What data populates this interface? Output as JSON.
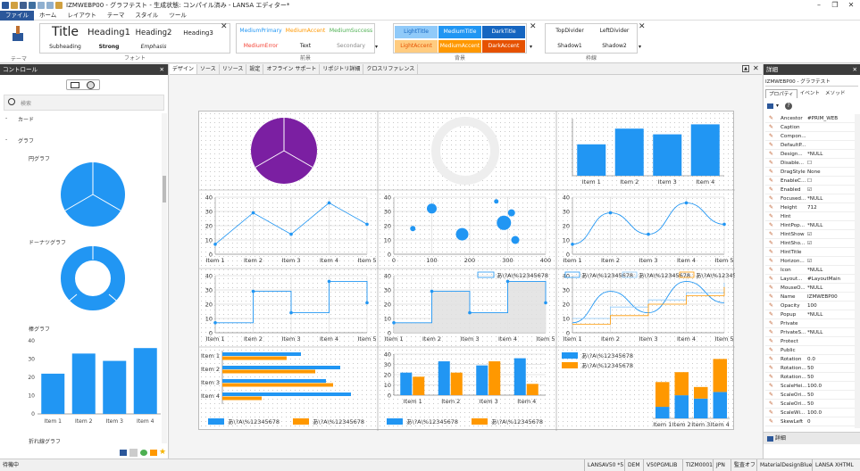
{
  "window": {
    "title": "IZMWEBP00 - グラフテスト - 生成状態: コンパイル済み - LANSA エディター*",
    "buttons": [
      "–",
      "❐",
      "✕"
    ]
  },
  "menu": [
    "ファイル",
    "ホーム",
    "レイアウト",
    "テーマ",
    "スタイル",
    "ツール"
  ],
  "ribbon": {
    "theme_label": "テーマ",
    "font_label": "フォント",
    "fonts": {
      "title": "Title",
      "heading1": "Heading1",
      "heading2": "Heading2",
      "heading3": "Heading3",
      "subheading": "Subheading",
      "strong": "Strong",
      "emphasis": "Emphasis"
    },
    "fg_label": "前景",
    "fg": {
      "medium_primary": "MediumPrimary",
      "medium_accent": "MediumAccent",
      "medium_success": "MediumSuccess",
      "medium_error": "MediumError",
      "text": "Text",
      "secondary": "Secondary"
    },
    "bg_label": "背景",
    "bg": {
      "light_title": "LightTitle",
      "medium_title": "MediumTitle",
      "dark_title": "DarkTitle",
      "light_accent": "LightAccent",
      "medium_accent": "MediumAccent",
      "dark_accent": "DarkAccent"
    },
    "border_label": "枠線",
    "border": {
      "top_divider": "TopDivider",
      "left_divider": "LeftDivider",
      "shadow1": "Shadow1",
      "shadow2": "Shadow2"
    }
  },
  "left_panel": {
    "header": "コントロール",
    "search_placeholder": "検索",
    "card_label": "カード",
    "graph_label": "グラフ",
    "pie_label": "円グラフ",
    "donut_label": "ドーナツグラフ",
    "bar_label": "棒グラフ",
    "line_label": "折れ線グラフ",
    "mini_bar": {
      "categories": [
        "Item 1",
        "Item 2",
        "Item 3",
        "Item 4"
      ],
      "values": [
        22,
        33,
        29,
        36
      ],
      "y_ticks": [
        "40",
        "30",
        "20",
        "10",
        "0"
      ]
    }
  },
  "tabs": [
    "デザイン",
    "ソース",
    "リソース",
    "設定",
    "オフライン サポート",
    "リポジトリ詳細",
    "クロスリファレンス"
  ],
  "chart_data": [
    {
      "type": "pie",
      "values": [
        1,
        1,
        1
      ],
      "color": "#7b1fa2"
    },
    {
      "type": "donut",
      "values": [
        1
      ],
      "color": "#eeeeee"
    },
    {
      "type": "bar",
      "categories": [
        "Item 1",
        "Item 2",
        "Item 3",
        "Item 4"
      ],
      "values": [
        22,
        33,
        29,
        36
      ],
      "color": "#2196f3"
    },
    {
      "type": "line",
      "categories": [
        "Item 1",
        "Item 2",
        "Item 3",
        "Item 4",
        "Item 5"
      ],
      "values": [
        7,
        29,
        14,
        36,
        21
      ],
      "ylim": [
        0,
        40
      ],
      "y_ticks": [
        0,
        10,
        20,
        30,
        40
      ]
    },
    {
      "type": "scatter",
      "x_ticks": [
        0,
        100,
        200,
        300,
        400
      ],
      "y_ticks": [
        0,
        10,
        20,
        30,
        40
      ],
      "points": [
        [
          100,
          32
        ],
        [
          270,
          37
        ],
        [
          50,
          18
        ],
        [
          290,
          22
        ],
        [
          180,
          14
        ],
        [
          320,
          10
        ],
        [
          310,
          29
        ]
      ]
    },
    {
      "type": "spline",
      "categories": [
        "Item 1",
        "Item 2",
        "Item 3",
        "Item 4",
        "Item 5"
      ],
      "values": [
        7,
        29,
        14,
        36,
        21
      ],
      "ylim": [
        0,
        40
      ],
      "y_ticks": [
        0,
        10,
        20,
        30,
        40
      ]
    },
    {
      "type": "step",
      "categories": [
        "Item 1",
        "Item 2",
        "Item 3",
        "Item 4",
        "Item 5"
      ],
      "values": [
        7,
        29,
        14,
        36,
        21
      ],
      "ylim": [
        0,
        40
      ],
      "y_ticks": [
        0,
        10,
        20,
        30,
        40
      ]
    },
    {
      "type": "step-area",
      "categories": [
        "Item 1",
        "Item 2",
        "Item 3",
        "Item 4",
        "Item 5"
      ],
      "values": [
        7,
        29,
        14,
        36,
        21
      ],
      "ylim": [
        0,
        40
      ],
      "y_ticks": [
        0,
        10,
        20,
        30,
        40
      ],
      "legend": "あ\\?A\\%12345678"
    },
    {
      "type": "multi-line",
      "categories": [
        "Item 1",
        "Item 2",
        "Item 3",
        "Item 4",
        "Item 5"
      ],
      "series": [
        {
          "name": "あ\\?A\\%12345678",
          "values": [
            7,
            29,
            14,
            36,
            21
          ]
        },
        {
          "name": "あ\\?A\\%12345678",
          "values": [
            10,
            18,
            23,
            28,
            35
          ]
        },
        {
          "name": "あ\\?A\\%12345678",
          "values": [
            6,
            12,
            20,
            26,
            32
          ]
        }
      ],
      "ylim": [
        0,
        40
      ],
      "y_ticks": [
        0,
        10,
        20,
        30,
        40
      ]
    },
    {
      "type": "hbar",
      "categories": [
        "Item 1",
        "Item 2",
        "Item 3",
        "Item 4"
      ],
      "series": [
        {
          "name": "あ\\?A\\%12345678",
          "values": [
            22,
            33,
            29,
            36
          ]
        },
        {
          "name": "あ\\?A\\%12345678",
          "values": [
            18,
            26,
            31,
            11
          ]
        }
      ]
    },
    {
      "type": "grouped-bar",
      "categories": [
        "Item 1",
        "Item 2",
        "Item 3",
        "Item 4"
      ],
      "series": [
        {
          "name": "あ\\?A\\%12345678",
          "values": [
            22,
            33,
            29,
            36
          ]
        },
        {
          "name": "あ\\?A\\%12345678",
          "values": [
            18,
            22,
            33,
            11
          ]
        }
      ],
      "ylim": [
        0,
        40
      ],
      "y_ticks": [
        0,
        10,
        20,
        30,
        40
      ]
    },
    {
      "type": "stacked-bar",
      "categories": [
        "Item 1",
        "Item 2",
        "Item 3",
        "Item 4"
      ],
      "series": [
        {
          "name": "あ\\?A\\%12345678",
          "values": [
            7,
            14,
            12,
            16
          ]
        },
        {
          "name": "あ\\?A\\%12345678",
          "values": [
            15,
            14,
            7,
            20
          ]
        }
      ]
    }
  ],
  "right_panel": {
    "header": "詳細",
    "component": "IZMWEBP00 - グラフテスト",
    "tabs": [
      "プロパティ",
      "イベント",
      "メソッド"
    ],
    "properties": [
      {
        "n": "Ancestor",
        "v": "#PRIM_WEB"
      },
      {
        "n": "Caption",
        "v": ""
      },
      {
        "n": "Compon...",
        "v": ""
      },
      {
        "n": "DefaultP...",
        "v": ""
      },
      {
        "n": "Design...",
        "v": "*NULL"
      },
      {
        "n": "Disable...",
        "v": "☐"
      },
      {
        "n": "DragStyle",
        "v": "None"
      },
      {
        "n": "EnableC...",
        "v": "☐"
      },
      {
        "n": "Enabled",
        "v": "☑"
      },
      {
        "n": "Focused...",
        "v": "*NULL"
      },
      {
        "n": "Height",
        "v": "712"
      },
      {
        "n": "Hint",
        "v": ""
      },
      {
        "n": "HintPop...",
        "v": "*NULL"
      },
      {
        "n": "HintShow",
        "v": "☑"
      },
      {
        "n": "HintSho...",
        "v": "☑"
      },
      {
        "n": "HintTitle",
        "v": ""
      },
      {
        "n": "Horizon...",
        "v": "☑"
      },
      {
        "n": "Icon",
        "v": "*NULL"
      },
      {
        "n": "Layout...",
        "v": "#LayoutMain"
      },
      {
        "n": "MouseO...",
        "v": "*NULL"
      },
      {
        "n": "Name",
        "v": "IZMWEBP00"
      },
      {
        "n": "Opacity",
        "v": "100"
      },
      {
        "n": "Popup",
        "v": "*NULL"
      },
      {
        "n": "Private",
        "v": ""
      },
      {
        "n": "PrivateS...",
        "v": "*NULL"
      },
      {
        "n": "Protect",
        "v": ""
      },
      {
        "n": "Public",
        "v": ""
      },
      {
        "n": "Rotation",
        "v": "0.0"
      },
      {
        "n": "Rotation...",
        "v": "50"
      },
      {
        "n": "Rotation...",
        "v": "50"
      },
      {
        "n": "ScaleHei...",
        "v": "100.0"
      },
      {
        "n": "ScaleOri...",
        "v": "50"
      },
      {
        "n": "ScaleOri...",
        "v": "50"
      },
      {
        "n": "ScaleWi...",
        "v": "100.0"
      },
      {
        "n": "SkewLeft",
        "v": "0"
      }
    ],
    "footer": "詳細"
  },
  "status": {
    "left": "待機中",
    "items": [
      "LANSAV50 *5",
      "DEM",
      "V50PGMLIB",
      "TIZM0001",
      "JPN",
      "監査オフ",
      "MaterialDesignBlue",
      "LANSA XHTML"
    ]
  },
  "colors": {
    "blue": "#2196f3",
    "orange": "#ff9800",
    "purple": "#7b1fa2",
    "ribbon_accent": "#2b579a"
  }
}
